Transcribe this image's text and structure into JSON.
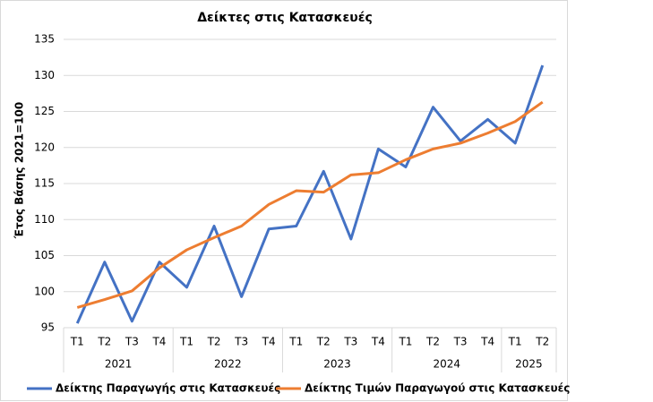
{
  "chart_data": {
    "type": "line",
    "title": "Δείκτες στις Κατασκευές",
    "y_label": "Έτος Βάσης 2021=100",
    "categories": [
      "Τ1",
      "Τ2",
      "Τ3",
      "Τ4",
      "Τ1",
      "Τ2",
      "Τ3",
      "Τ4",
      "Τ1",
      "Τ2",
      "Τ3",
      "Τ4",
      "Τ1",
      "Τ2",
      "Τ3",
      "Τ4",
      "Τ1",
      "Τ2"
    ],
    "category_groups": [
      {
        "label": "2021",
        "span": 4
      },
      {
        "label": "2022",
        "span": 4
      },
      {
        "label": "2023",
        "span": 4
      },
      {
        "label": "2024",
        "span": 4
      },
      {
        "label": "2025",
        "span": 2
      }
    ],
    "series": [
      {
        "name": "Δείκτης Παραγωγής στις Κατασκευές",
        "color": "#4472c4",
        "values": [
          95.6,
          104.1,
          95.9,
          104.1,
          100.6,
          109.1,
          99.3,
          108.7,
          109.1,
          116.7,
          107.3,
          119.8,
          117.3,
          125.6,
          120.9,
          123.9,
          120.6,
          131.4
        ]
      },
      {
        "name": "Δείκτης Τιμών Παραγωγού στις Κατασκευές",
        "color": "#ed7d31",
        "values": [
          97.8,
          98.9,
          100.1,
          103.3,
          105.8,
          107.5,
          109.1,
          112.1,
          114.0,
          113.8,
          116.2,
          116.5,
          118.3,
          119.8,
          120.6,
          122.0,
          123.6,
          126.3
        ]
      }
    ],
    "ylim": [
      95,
      135
    ],
    "yticks": [
      95,
      100,
      105,
      110,
      115,
      120,
      125,
      130,
      135
    ],
    "grid": true,
    "legend": "bottom"
  }
}
